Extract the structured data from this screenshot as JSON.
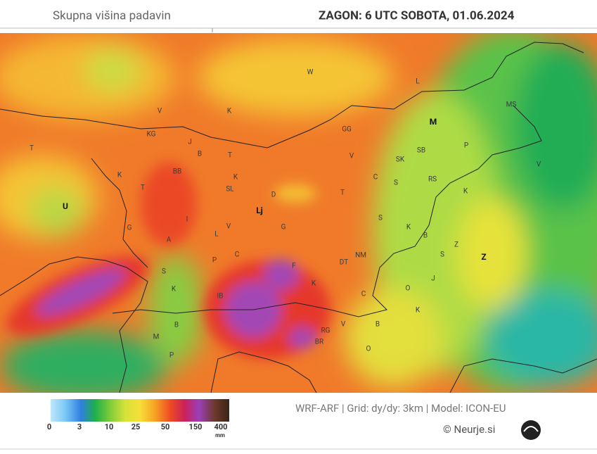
{
  "header": {
    "title": "Skupna višina padavin",
    "run": "ZAGON: 6 UTC  SOBOTA, 01.06.2024"
  },
  "map": {
    "labels": [
      "W",
      "L",
      "V",
      "K",
      "M",
      "MS",
      "KG",
      "J",
      "GG",
      "SB",
      "P",
      "T",
      "B",
      "T",
      "V",
      "SK",
      "V",
      "BB",
      "K",
      "C",
      "RS",
      "K",
      "S",
      "K",
      "T",
      "SL",
      "D",
      "T",
      "U",
      "Lj",
      "S",
      "I",
      "V",
      "G",
      "K",
      "G",
      "L",
      "B",
      "A",
      "Z",
      "Z",
      "S",
      "P",
      "C",
      "NM",
      "DT",
      "F",
      "S",
      "J",
      "K",
      "K",
      "O",
      "IB",
      "C",
      "K",
      "B",
      "V",
      "B",
      "RG",
      "M",
      "BR",
      "O",
      "P"
    ]
  },
  "legend": {
    "ticks": [
      0,
      3,
      10,
      25,
      50,
      150,
      400
    ],
    "unit": "mm"
  },
  "footer": {
    "model": "WRF-ARF | Grid: dy/dy: 3km | Model: ICON-EU",
    "credit": "© Neurje.si"
  }
}
